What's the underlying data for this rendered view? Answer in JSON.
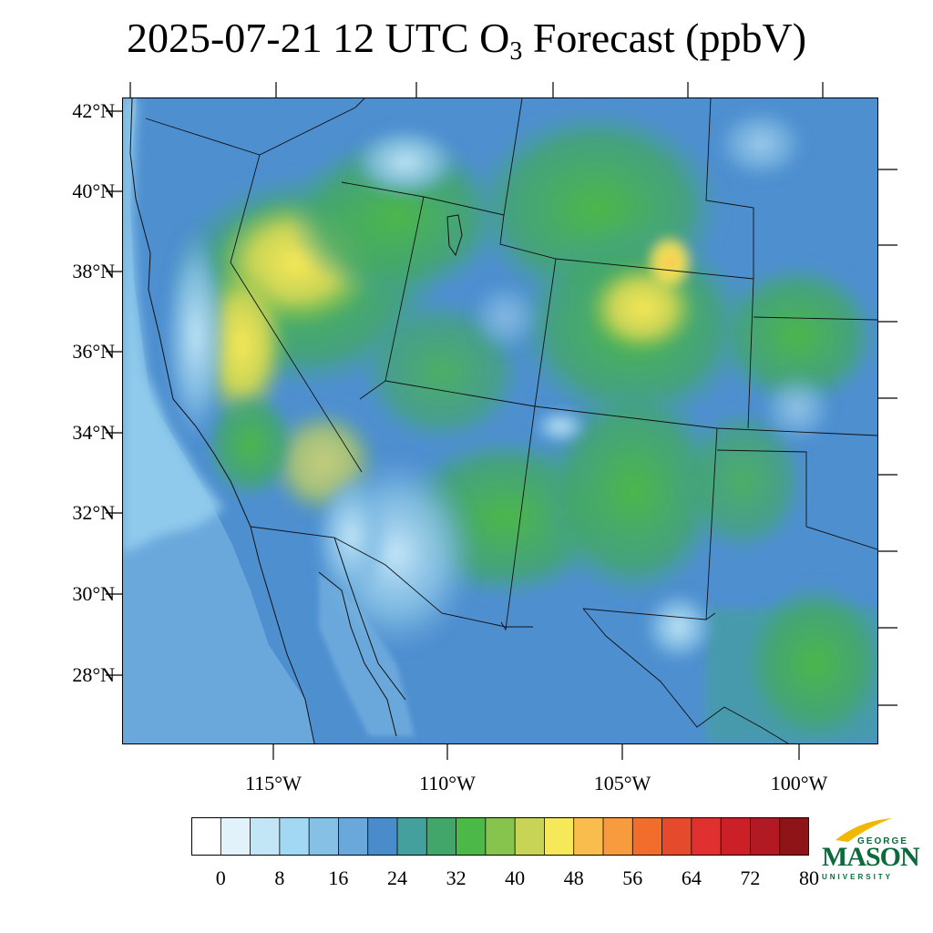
{
  "title": {
    "prefix": "2025-07-21 12 UTC O",
    "subscript": "3",
    "suffix": " Forecast (ppbV)"
  },
  "map": {
    "lat_labels": [
      "42°N",
      "40°N",
      "38°N",
      "36°N",
      "34°N",
      "32°N",
      "30°N",
      "28°N"
    ],
    "lon_labels": [
      "115°W",
      "110°W",
      "105°W",
      "100°W"
    ]
  },
  "colorbar": {
    "labels": [
      "0",
      "8",
      "16",
      "24",
      "32",
      "40",
      "48",
      "56",
      "64",
      "72",
      "80"
    ],
    "colors": [
      "#ffffff",
      "#e1f2fb",
      "#c3e6f7",
      "#a3d8f4",
      "#86c0e5",
      "#6aa8dc",
      "#4a8cca",
      "#44a09d",
      "#42a66b",
      "#4cb848",
      "#87c44e",
      "#c8d456",
      "#f6e858",
      "#f9bd4e",
      "#f89a3e",
      "#f26c2c",
      "#e64a2c",
      "#e03030",
      "#cc2028",
      "#b11a22",
      "#8f1418"
    ]
  },
  "logo": {
    "top": "GEORGE",
    "main": "MASON",
    "bottom": "UNIVERSITY",
    "color": "#0b6b3a",
    "accent": "#f2b700"
  },
  "colors": {
    "ocean": "#8fcaec",
    "land_blue": "#4e8fd0",
    "land_green": "#4db54b"
  }
}
